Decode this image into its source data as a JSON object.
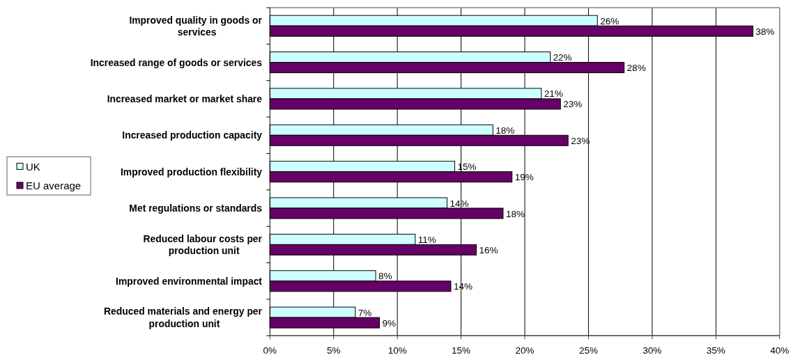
{
  "chart_data": {
    "type": "bar",
    "orientation": "horizontal",
    "categories": [
      "Improved quality in goods or services",
      "Increased range of goods or services",
      "Increased market or market share",
      "Increased production capacity",
      "Improved production flexibility",
      "Met regulations or standards",
      "Reduced labour costs per production unit",
      "Improved environmental impact",
      "Reduced materials and energy per production unit"
    ],
    "series": [
      {
        "name": "UK",
        "color": "#ccffff",
        "values": [
          25.7,
          22.0,
          21.3,
          17.5,
          14.5,
          13.9,
          11.4,
          8.3,
          6.7
        ],
        "value_labels": [
          "26%",
          "22%",
          "21%",
          "18%",
          "15%",
          "14%",
          "11%",
          "8%",
          "7%"
        ]
      },
      {
        "name": "EU average",
        "color": "#660066",
        "values": [
          37.9,
          27.8,
          22.8,
          23.4,
          19.0,
          18.3,
          16.2,
          14.2,
          8.6
        ],
        "value_labels": [
          "38%",
          "28%",
          "23%",
          "23%",
          "19%",
          "18%",
          "16%",
          "14%",
          "9%"
        ]
      }
    ],
    "xlim": [
      0,
      40
    ],
    "xticks": [
      {
        "value": 0,
        "label": "0%"
      },
      {
        "value": 5,
        "label": "5%"
      },
      {
        "value": 10,
        "label": "10%"
      },
      {
        "value": 15,
        "label": "15%"
      },
      {
        "value": 20,
        "label": "20%"
      },
      {
        "value": 25,
        "label": "25%"
      },
      {
        "value": 30,
        "label": "30%"
      },
      {
        "value": 35,
        "label": "35%"
      },
      {
        "value": 40,
        "label": "40%"
      }
    ],
    "grid": "x",
    "legend": "left"
  }
}
